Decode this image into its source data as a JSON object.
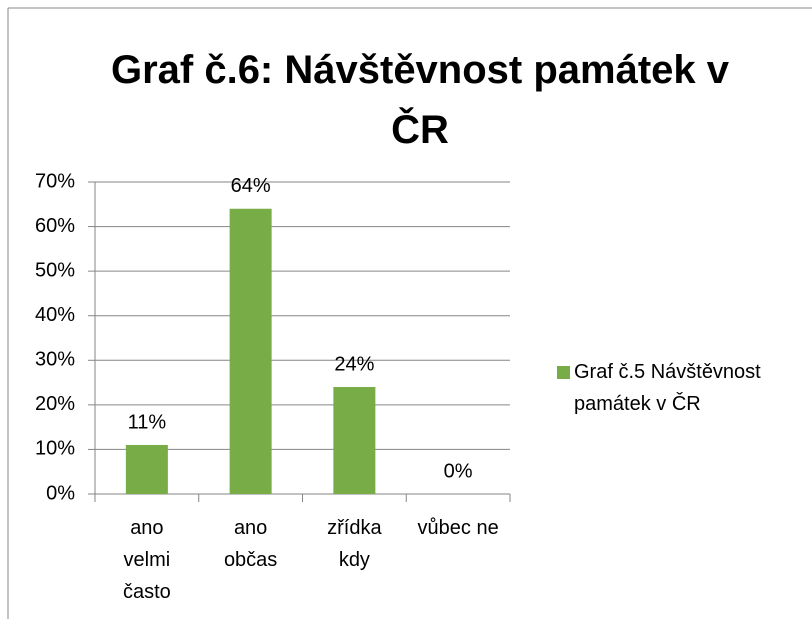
{
  "chart_data": {
    "type": "bar",
    "title": "Graf č.6: Návštěvnost památek v ČR",
    "categories": [
      "ano velmi často",
      "ano občas",
      "zřídka kdy",
      "vůbec ne"
    ],
    "series": [
      {
        "name": "Graf č.5 Návštěvnost památek v ČR",
        "color": "#77ac46",
        "values": [
          11,
          64,
          24,
          0
        ],
        "value_labels": [
          "11%",
          "64%",
          "24%",
          "0%"
        ]
      }
    ],
    "ylim": [
      0,
      70
    ],
    "yticks": [
      {
        "value": 0,
        "label": "0%"
      },
      {
        "value": 10,
        "label": "10%"
      },
      {
        "value": 20,
        "label": "20%"
      },
      {
        "value": 30,
        "label": "30%"
      },
      {
        "value": 40,
        "label": "40%"
      },
      {
        "value": 50,
        "label": "50%"
      },
      {
        "value": 60,
        "label": "60%"
      },
      {
        "value": 70,
        "label": "70%"
      }
    ],
    "grid": true,
    "legend": "right"
  }
}
